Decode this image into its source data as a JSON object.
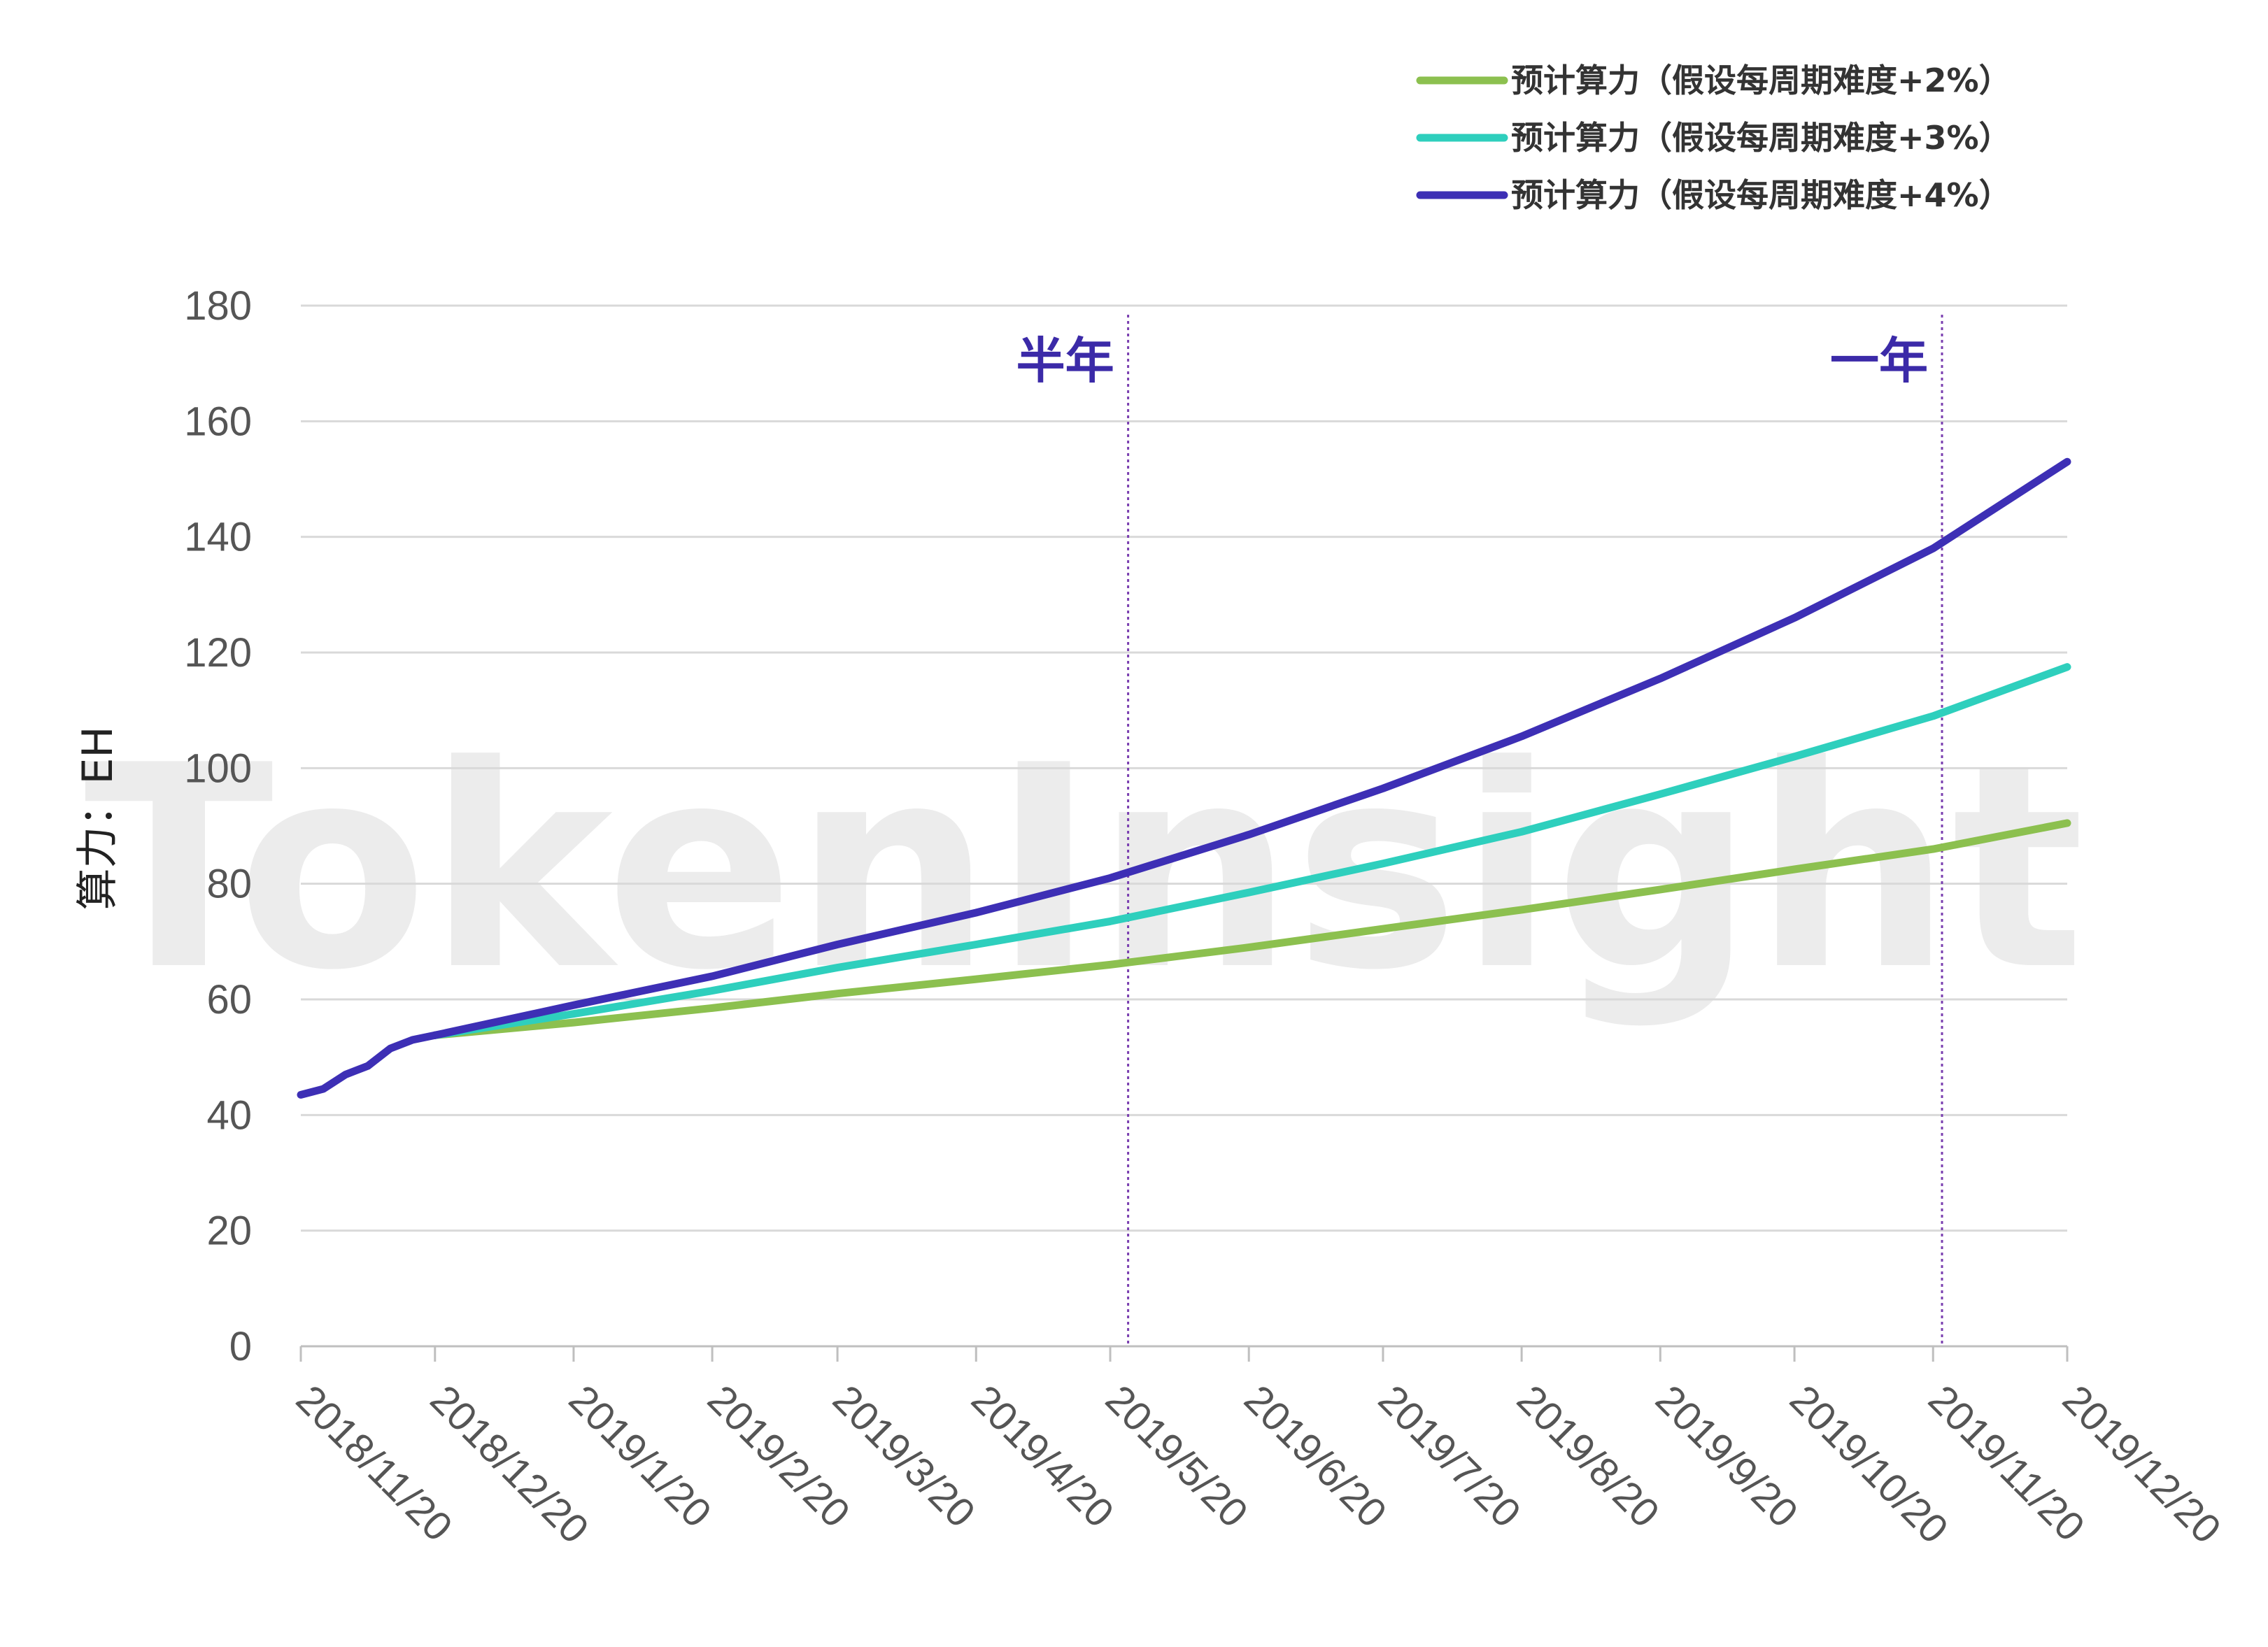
{
  "chart_data": {
    "type": "line",
    "title": "",
    "watermark": "TokenInsight",
    "ylabel": "算力：EH",
    "ylim": [
      0,
      180
    ],
    "yticks": [
      0,
      20,
      40,
      60,
      80,
      100,
      120,
      140,
      160,
      180
    ],
    "xlim": [
      "2018/11/20",
      "2019/12/20"
    ],
    "xticks": [
      "2018/11/20",
      "2018/12/20",
      "2019/1/20",
      "2019/2/20",
      "2019/3/20",
      "2019/4/20",
      "2019/5/20",
      "2019/6/20",
      "2019/7/20",
      "2019/8/20",
      "2019/9/20",
      "2019/10/20",
      "2019/11/20",
      "2019/12/20"
    ],
    "grid": "horizontal",
    "legend_position": "top-right",
    "markers": [
      {
        "label": "半年",
        "x": "2019/5/24",
        "color": "#7a3fb0"
      },
      {
        "label": "一年",
        "x": "2019/11/22",
        "color": "#7a3fb0"
      }
    ],
    "shared_history": [
      [
        "2018/11/20",
        43.5
      ],
      [
        "2018/11/25",
        44.5
      ],
      [
        "2018/11/30",
        47
      ],
      [
        "2018/12/5",
        48.5
      ],
      [
        "2018/12/10",
        51.5
      ],
      [
        "2018/12/15",
        53
      ],
      [
        "2018/12/20",
        53.8
      ]
    ],
    "series": [
      {
        "name": "预计算力（假设每周期难度+2%）",
        "color": "#8cc04f",
        "values": [
          [
            "2018/12/20",
            53.8
          ],
          [
            "2019/1/20",
            56
          ],
          [
            "2019/2/20",
            58.5
          ],
          [
            "2019/3/20",
            61
          ],
          [
            "2019/4/20",
            63.5
          ],
          [
            "2019/5/20",
            66
          ],
          [
            "2019/6/20",
            69
          ],
          [
            "2019/7/20",
            72.2
          ],
          [
            "2019/8/20",
            75.5
          ],
          [
            "2019/9/20",
            79
          ],
          [
            "2019/10/20",
            82.5
          ],
          [
            "2019/11/20",
            86
          ],
          [
            "2019/12/20",
            90.5
          ]
        ]
      },
      {
        "name": "预计算力（假设每周期难度+3%）",
        "color": "#2ecfbd",
        "values": [
          [
            "2018/12/20",
            53.8
          ],
          [
            "2019/1/20",
            57.5
          ],
          [
            "2019/2/20",
            61.5
          ],
          [
            "2019/3/20",
            65.5
          ],
          [
            "2019/4/20",
            69.5
          ],
          [
            "2019/5/20",
            73.5
          ],
          [
            "2019/6/20",
            78.5
          ],
          [
            "2019/7/20",
            83.5
          ],
          [
            "2019/8/20",
            89
          ],
          [
            "2019/9/20",
            95.5
          ],
          [
            "2019/10/20",
            102
          ],
          [
            "2019/11/20",
            109
          ],
          [
            "2019/12/20",
            117.5
          ]
        ]
      },
      {
        "name": "预计算力（假设每周期难度+4%）",
        "color": "#3d2fb5",
        "values": [
          [
            "2018/12/20",
            53.8
          ],
          [
            "2019/1/20",
            59
          ],
          [
            "2019/2/20",
            64
          ],
          [
            "2019/3/20",
            69.5
          ],
          [
            "2019/4/20",
            75
          ],
          [
            "2019/5/20",
            81
          ],
          [
            "2019/6/20",
            88.5
          ],
          [
            "2019/7/20",
            96.5
          ],
          [
            "2019/8/20",
            105.5
          ],
          [
            "2019/9/20",
            115.5
          ],
          [
            "2019/10/20",
            126
          ],
          [
            "2019/11/20",
            138
          ],
          [
            "2019/12/20",
            153
          ]
        ]
      }
    ]
  }
}
